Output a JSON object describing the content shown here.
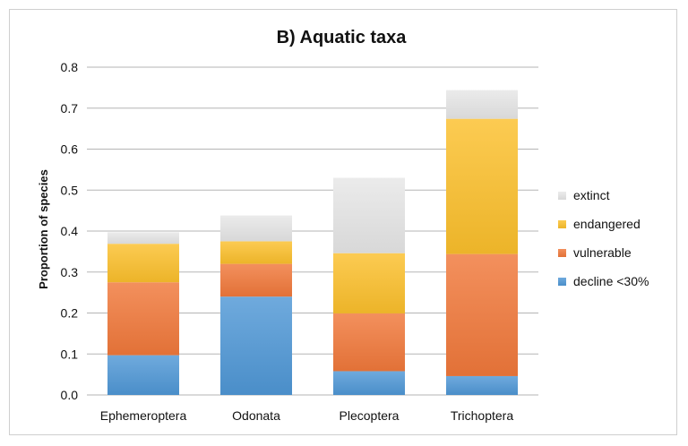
{
  "chart_data": {
    "type": "bar",
    "stacked": true,
    "title": "B) Aquatic taxa",
    "xlabel": "",
    "ylabel": "Proportion of species",
    "ylim": [
      0,
      0.8
    ],
    "yticks": [
      "0.0",
      "0.1",
      "0.2",
      "0.3",
      "0.4",
      "0.5",
      "0.6",
      "0.7",
      "0.8"
    ],
    "grid": true,
    "legend_position": "right",
    "categories": [
      "Ephemeroptera",
      "Odonata",
      "Plecoptera",
      "Trichoptera"
    ],
    "series": [
      {
        "name": "decline <30%",
        "color": "#4f97d6",
        "values": [
          0.097,
          0.24,
          0.058,
          0.046
        ]
      },
      {
        "name": "vulnerable",
        "color": "#f0783a",
        "values": [
          0.178,
          0.08,
          0.141,
          0.298
        ]
      },
      {
        "name": "endangered",
        "color": "#fbbf2c",
        "values": [
          0.094,
          0.055,
          0.147,
          0.33
        ]
      },
      {
        "name": "extinct",
        "color": "#e6e6e6",
        "values": [
          0.028,
          0.063,
          0.184,
          0.07
        ]
      }
    ],
    "legend_order": [
      "extinct",
      "endangered",
      "vulnerable",
      "decline <30%"
    ]
  }
}
